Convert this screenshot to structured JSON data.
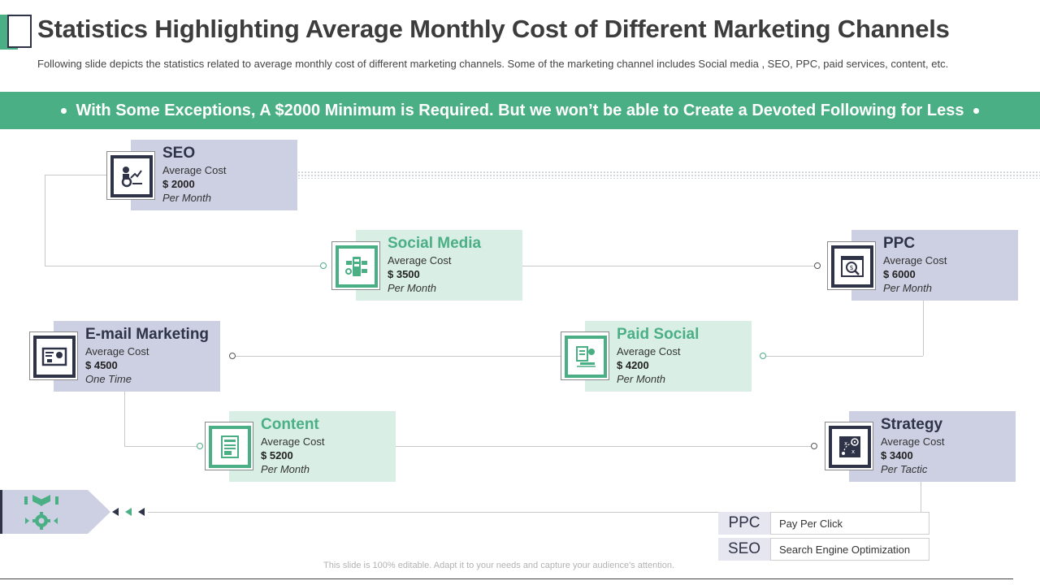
{
  "header": {
    "title": "Statistics Highlighting Average Monthly Cost of Different Marketing Channels",
    "subtitle": "Following slide depicts the statistics related to average monthly cost of different marketing channels. Some of the marketing  channel includes Social media , SEO, PPC, paid services, content,  etc."
  },
  "banner": {
    "text": "With Some Exceptions, A $2000 Minimum is Required. But we won’t be able to Create a Devoted Following for Less"
  },
  "channels": [
    {
      "name": "SEO",
      "label": "Average Cost",
      "amount": "$ 2000",
      "period": "Per Month",
      "icon": "seo-icon"
    },
    {
      "name": "Social Media",
      "label": "Average Cost",
      "amount": "$ 3500",
      "period": "Per Month",
      "icon": "social-media-icon"
    },
    {
      "name": "PPC",
      "label": "Average Cost",
      "amount": "$ 6000",
      "period": "Per Month",
      "icon": "ppc-icon"
    },
    {
      "name": "E-mail Marketing",
      "label": "Average Cost",
      "amount": "$ 4500",
      "period": "One Time",
      "icon": "email-icon"
    },
    {
      "name": "Paid Social",
      "label": "Average Cost",
      "amount": "$ 4200",
      "period": "Per Month",
      "icon": "paid-social-icon"
    },
    {
      "name": "Content",
      "label": "Average Cost",
      "amount": "$ 5200",
      "period": "Per Month",
      "icon": "content-icon"
    },
    {
      "name": "Strategy",
      "label": "Average Cost",
      "amount": "$ 3400",
      "period": "Per Tactic",
      "icon": "strategy-icon"
    }
  ],
  "legend": [
    {
      "abbr": "PPC",
      "full": "Pay Per Click"
    },
    {
      "abbr": "SEO",
      "full": "Search Engine Optimization"
    }
  ],
  "footer": {
    "note": "This slide is 100% editable. Adapt it to your needs and capture your audience's attention."
  },
  "colors": {
    "green": "#4baf85",
    "navy": "#2f3347",
    "blue_card": "#cdd0e3",
    "green_card": "#d9efe6"
  }
}
